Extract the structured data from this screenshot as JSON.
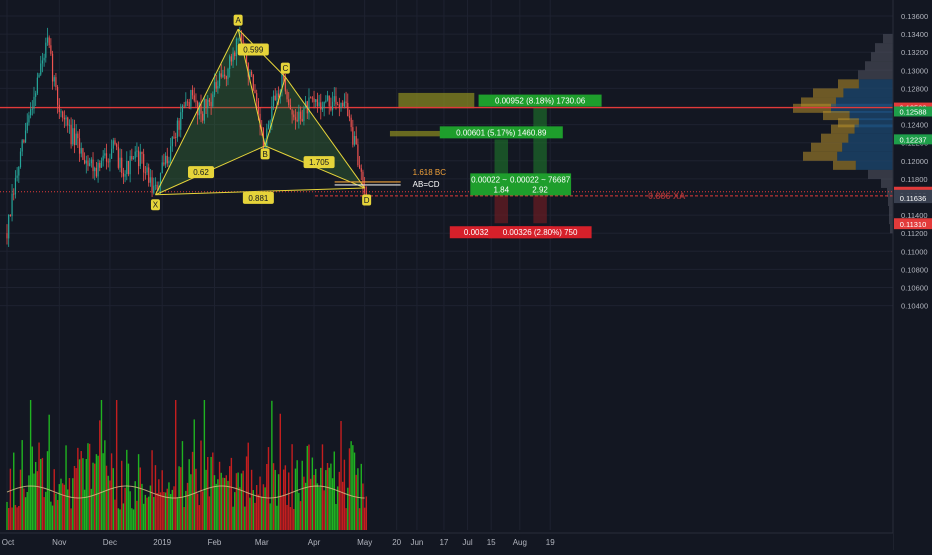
{
  "chart_data": {
    "type": "candlestick",
    "y_axis": {
      "range": [
        0.1035,
        0.1365
      ],
      "ticks": [
        "0.13600",
        "0.13400",
        "0.13200",
        "0.13000",
        "0.12800",
        "0.12400",
        "0.12200",
        "0.12000",
        "0.11800",
        "0.11400",
        "0.11200",
        "0.11000",
        "0.10800",
        "0.10600",
        "0.10400"
      ]
    },
    "x_axis": {
      "labels": [
        {
          "label": "Oct",
          "day": 0
        },
        {
          "label": "Nov",
          "day": 31
        },
        {
          "label": "Dec",
          "day": 61
        },
        {
          "label": "2019",
          "day": 92
        },
        {
          "label": "Feb",
          "day": 123
        },
        {
          "label": "Mar",
          "day": 151
        },
        {
          "label": "Apr",
          "day": 182
        },
        {
          "label": "May",
          "day": 212
        },
        {
          "label": "20",
          "day": 231
        },
        {
          "label": "Jun",
          "day": 243
        },
        {
          "label": "17",
          "day": 259
        },
        {
          "label": "Jul",
          "day": 273
        },
        {
          "label": "15",
          "day": 287
        },
        {
          "label": "Aug",
          "day": 304
        },
        {
          "label": "19",
          "day": 322
        }
      ]
    },
    "price_path": [
      {
        "day": 0,
        "price": 0.112
      },
      {
        "day": 5,
        "price": 0.1175
      },
      {
        "day": 12,
        "price": 0.124
      },
      {
        "day": 18,
        "price": 0.129
      },
      {
        "day": 24,
        "price": 0.133
      },
      {
        "day": 30,
        "price": 0.1265
      },
      {
        "day": 38,
        "price": 0.1228
      },
      {
        "day": 46,
        "price": 0.1205
      },
      {
        "day": 54,
        "price": 0.119
      },
      {
        "day": 62,
        "price": 0.1215
      },
      {
        "day": 70,
        "price": 0.119
      },
      {
        "day": 78,
        "price": 0.1205
      },
      {
        "day": 88,
        "price": 0.1165
      },
      {
        "day": 98,
        "price": 0.1222
      },
      {
        "day": 108,
        "price": 0.127
      },
      {
        "day": 116,
        "price": 0.1255
      },
      {
        "day": 124,
        "price": 0.128
      },
      {
        "day": 131,
        "price": 0.13
      },
      {
        "day": 138,
        "price": 0.1342
      },
      {
        "day": 145,
        "price": 0.1285
      },
      {
        "day": 152,
        "price": 0.1215
      },
      {
        "day": 158,
        "price": 0.1262
      },
      {
        "day": 164,
        "price": 0.1293
      },
      {
        "day": 170,
        "price": 0.1242
      },
      {
        "day": 177,
        "price": 0.1258
      },
      {
        "day": 186,
        "price": 0.1265
      },
      {
        "day": 194,
        "price": 0.1262
      },
      {
        "day": 200,
        "price": 0.127
      },
      {
        "day": 205,
        "price": 0.1225
      },
      {
        "day": 210,
        "price": 0.1185
      },
      {
        "day": 213,
        "price": 0.117
      }
    ],
    "pattern": {
      "points": [
        {
          "name": "X",
          "day": 88,
          "price": 0.11625
        },
        {
          "name": "A",
          "day": 137,
          "price": 0.13455
        },
        {
          "name": "B",
          "day": 153,
          "price": 0.12165
        },
        {
          "name": "C",
          "day": 165,
          "price": 0.12925
        },
        {
          "name": "D",
          "day": 212,
          "price": 0.117
        }
      ],
      "ratios": [
        {
          "label": "0.599",
          "day": 146,
          "price": 0.1323
        },
        {
          "label": "0.62",
          "day": 115,
          "price": 0.11875
        },
        {
          "label": "1.705",
          "day": 185,
          "price": 0.11985
        },
        {
          "label": "0.881",
          "day": 149,
          "price": 0.1159
        }
      ]
    },
    "annotations": {
      "bc_label": "1.618 BC",
      "abcd_label": "AB=CD"
    },
    "zones": [
      {
        "day_start": 232,
        "day_end": 277,
        "price_low": 0.1258,
        "price_high": 0.1275
      },
      {
        "day_start": 227,
        "day_end": 282,
        "price_low": 0.1227,
        "price_high": 0.1233
      }
    ],
    "horizontal_lines": [
      {
        "price": 0.12588,
        "color": "#e23a3a",
        "style": "solid"
      },
      {
        "price": 0.11658,
        "color": "#e23a3a",
        "style": "dotted"
      },
      {
        "price": 0.11612,
        "color": "#e23a3a",
        "style": "dashed"
      }
    ],
    "positions": [
      {
        "day_start": 289,
        "day_end": 297,
        "entry": 0.1164,
        "target": 0.12237,
        "stop": 0.1131,
        "target_label": "0.00601 (5.17%) 1460.89",
        "entry_label_1": "0.00022 ~ 76687",
        "entry_label_2": "1.84",
        "stop_label": "0.00326 (2.80%) 750"
      },
      {
        "day_start": 312,
        "day_end": 320,
        "entry": 0.1164,
        "target": 0.12588,
        "stop": 0.1131,
        "target_label": "0.00952 (8.18%) 1730.06",
        "entry_label_1": "0.00022 ~ 76687",
        "entry_label_2": "2.92",
        "stop_label": "0.00326 (2.80%) 750"
      }
    ],
    "faded_label": "0.886 XA",
    "price_tags": [
      {
        "label": "0.12588",
        "price": 0.12588,
        "bg": "#e23a3a"
      },
      {
        "label": "0.11658",
        "price": 0.11658,
        "bg": "#e23a3a"
      },
      {
        "label": "0.11612",
        "price": 0.11612,
        "bg": "#e23a3a"
      },
      {
        "label": "0.11310",
        "price": 0.1131,
        "bg": "#e23a3a"
      },
      {
        "label": "0.11310",
        "price": 0.113,
        "bg": "#e23a3a"
      },
      {
        "label": "0.12588",
        "price": 0.12545,
        "bg": "#1e9e4a"
      },
      {
        "label": "0.12237",
        "price": 0.12237,
        "bg": "#1e9e4a"
      },
      {
        "label": "0.11636",
        "price": 0.11624,
        "bg": "#394050"
      },
      {
        "label": "0.11636",
        "price": 0.11588,
        "bg": "#394050"
      }
    ],
    "volume_profile": [
      {
        "price": 0.1335,
        "vol": 0.1
      },
      {
        "price": 0.1325,
        "vol": 0.18
      },
      {
        "price": 0.1315,
        "vol": 0.22
      },
      {
        "price": 0.1305,
        "vol": 0.28
      },
      {
        "price": 0.1295,
        "vol": 0.35
      },
      {
        "price": 0.1285,
        "vol": 0.55
      },
      {
        "price": 0.1275,
        "vol": 0.8
      },
      {
        "price": 0.1265,
        "vol": 0.92
      },
      {
        "price": 0.1258,
        "vol": 1.0
      },
      {
        "price": 0.125,
        "vol": 0.7
      },
      {
        "price": 0.1242,
        "vol": 0.55
      },
      {
        "price": 0.1235,
        "vol": 0.62
      },
      {
        "price": 0.1225,
        "vol": 0.72
      },
      {
        "price": 0.1215,
        "vol": 0.82
      },
      {
        "price": 0.1205,
        "vol": 0.9
      },
      {
        "price": 0.1195,
        "vol": 0.6
      },
      {
        "price": 0.1185,
        "vol": 0.25
      },
      {
        "price": 0.1175,
        "vol": 0.12
      },
      {
        "price": 0.1165,
        "vol": 0.06
      },
      {
        "price": 0.1155,
        "vol": 0.05
      },
      {
        "price": 0.1145,
        "vol": 0.04
      },
      {
        "price": 0.1135,
        "vol": 0.04
      },
      {
        "price": 0.1125,
        "vol": 0.03
      }
    ],
    "colors": {
      "background": "#131722",
      "up": "#26a69a",
      "down": "#ef5350",
      "pattern": "#e6d43a",
      "pattern_fill": "#3c7a3a",
      "zone": "#8a8a20",
      "volume_up": "#21c421",
      "volume_down": "#d81f1f",
      "vp_value_area": "#1f5a8c",
      "vp_outer": "#b8902a"
    }
  }
}
